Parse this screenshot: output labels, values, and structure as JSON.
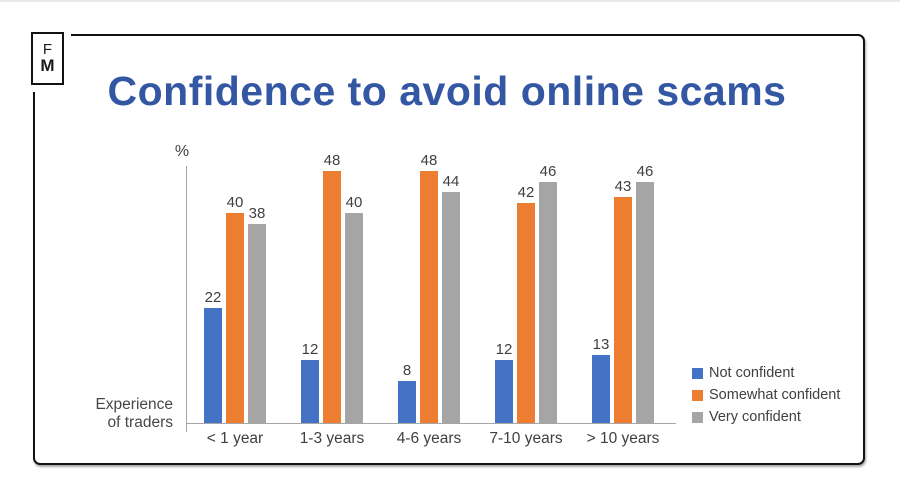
{
  "logo": {
    "line1": "F",
    "line2": "M"
  },
  "chart_data": {
    "type": "bar",
    "title": "Confidence to avoid online scams",
    "title_color": "#3457A3",
    "ylabel": "%",
    "xlabel": "Experience\nof traders",
    "categories": [
      "< 1 year",
      "1-3 years",
      "4-6 years",
      "7-10 years",
      "> 10 years"
    ],
    "series": [
      {
        "name": "Not confident",
        "color": "#4472C4",
        "values": [
          22,
          12,
          8,
          12,
          13
        ]
      },
      {
        "name": "Somewhat confident",
        "color": "#ED7D31",
        "values": [
          40,
          48,
          48,
          42,
          43
        ]
      },
      {
        "name": "Very confident",
        "color": "#A5A5A5",
        "values": [
          38,
          40,
          44,
          46,
          46
        ]
      }
    ],
    "ylim": [
      0,
      48
    ],
    "grid": false,
    "data_labels": true,
    "legend_position": "right",
    "axis_color": "#a6a6a6",
    "label_color": "#404040"
  }
}
